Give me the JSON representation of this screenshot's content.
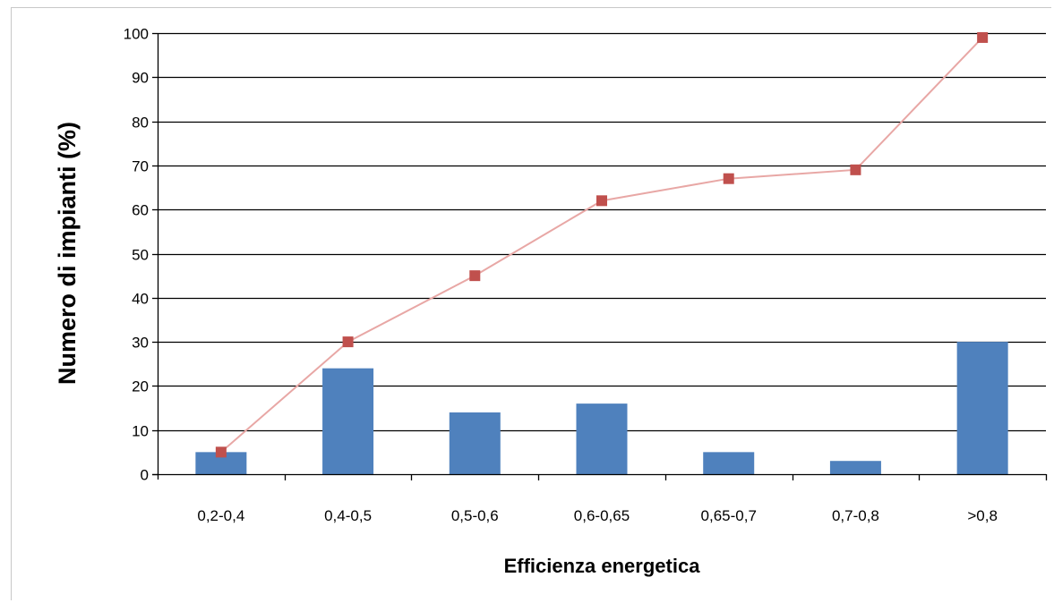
{
  "chart_data": {
    "type": "bar",
    "categories": [
      "0,2-0,4",
      "0,4-0,5",
      "0,5-0,6",
      "0,6-0,65",
      "0,65-0,7",
      "0,7-0,8",
      ">0,8"
    ],
    "series": [
      {
        "type": "bar",
        "values": [
          5,
          24,
          14,
          16,
          5,
          3,
          30
        ]
      },
      {
        "type": "line",
        "values": [
          5,
          30,
          45,
          62,
          67,
          69,
          99
        ]
      }
    ],
    "xlabel": "Efficienza energetica",
    "ylabel": "Numero di impianti (%)",
    "ylim": [
      0,
      100
    ],
    "yticks": [
      0,
      10,
      20,
      30,
      40,
      50,
      60,
      70,
      80,
      90,
      100
    ],
    "grid": true,
    "colors": {
      "bar": "#4f81bd",
      "line": "#e8a7a5",
      "marker": "#c0504d",
      "grid": "#000000"
    }
  }
}
